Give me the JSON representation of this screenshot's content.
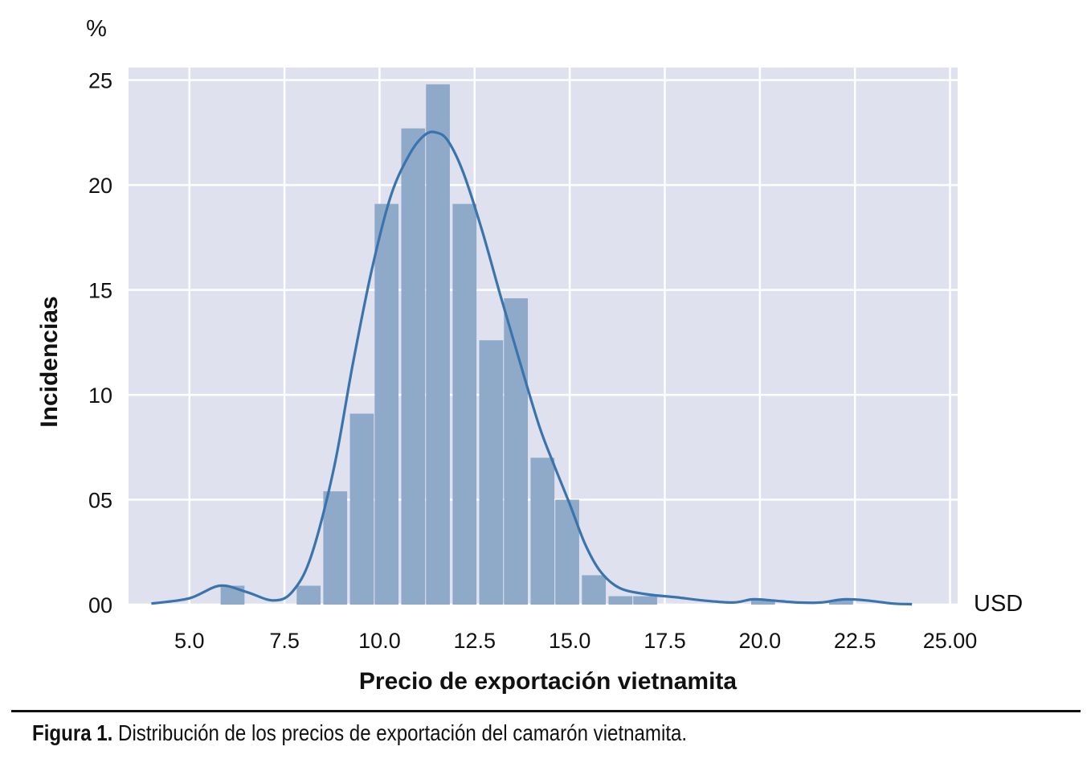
{
  "chart_data": {
    "type": "bar",
    "title": "",
    "xlabel": "Precio de exportación vietnamita",
    "ylabel": "Incidencias",
    "y_unit_label": "%",
    "x_unit_label": "USD",
    "xlim": [
      3.4,
      25.2
    ],
    "ylim": [
      0,
      25.6
    ],
    "x_ticks": [
      5.0,
      7.5,
      10.0,
      12.5,
      15.0,
      17.5,
      20.0,
      22.5,
      25.0
    ],
    "x_tick_labels": [
      "5.0",
      "7.5",
      "10.0",
      "12.5",
      "15.0",
      "17.5",
      "20.0",
      "22.5",
      "25.00"
    ],
    "y_ticks": [
      0,
      5,
      10,
      15,
      20,
      25
    ],
    "y_tick_labels": [
      "00",
      "05",
      "10",
      "15",
      "20",
      "25"
    ],
    "grid": true,
    "bin_width": 0.67,
    "bins": [
      {
        "x0": 5.8,
        "value": 0.9
      },
      {
        "x0": 7.8,
        "value": 0.9
      },
      {
        "x0": 8.5,
        "value": 5.4
      },
      {
        "x0": 9.2,
        "value": 9.1
      },
      {
        "x0": 9.85,
        "value": 19.1
      },
      {
        "x0": 10.55,
        "value": 22.7
      },
      {
        "x0": 11.2,
        "value": 24.8
      },
      {
        "x0": 11.9,
        "value": 19.1
      },
      {
        "x0": 12.6,
        "value": 12.6
      },
      {
        "x0": 13.25,
        "value": 14.6
      },
      {
        "x0": 13.95,
        "value": 7.0
      },
      {
        "x0": 14.6,
        "value": 5.0
      },
      {
        "x0": 15.3,
        "value": 1.4
      },
      {
        "x0": 16.0,
        "value": 0.4
      },
      {
        "x0": 16.65,
        "value": 0.4
      },
      {
        "x0": 19.75,
        "value": 0.2
      },
      {
        "x0": 21.8,
        "value": 0.2
      }
    ],
    "kde": {
      "name": "density",
      "x": [
        4.0,
        5.0,
        5.8,
        6.5,
        7.2,
        7.7,
        8.2,
        8.8,
        9.3,
        9.8,
        10.3,
        10.8,
        11.2,
        11.5,
        11.8,
        12.2,
        12.7,
        13.2,
        13.7,
        14.2,
        14.6,
        15.0,
        15.4,
        15.8,
        16.3,
        17.0,
        17.8,
        18.5,
        19.3,
        19.8,
        20.3,
        21.0,
        21.6,
        22.2,
        22.8,
        23.5,
        24.0
      ],
      "y": [
        0.05,
        0.3,
        0.9,
        0.6,
        0.2,
        0.6,
        2.3,
        6.5,
        11.5,
        16.0,
        19.5,
        21.5,
        22.4,
        22.5,
        22.1,
        20.6,
        17.8,
        14.6,
        11.5,
        8.5,
        6.6,
        4.8,
        2.9,
        1.6,
        0.8,
        0.5,
        0.35,
        0.2,
        0.1,
        0.25,
        0.2,
        0.1,
        0.1,
        0.25,
        0.2,
        0.05,
        0.02
      ]
    },
    "colors": {
      "bar": "#8faac8",
      "line": "#3a74ad",
      "plot_bg": "#dfe1ee",
      "grid": "#ffffff"
    }
  },
  "caption": {
    "label": "Figura 1.",
    "text": " Distribución de los precios de exportación del camarón vietnamita."
  }
}
